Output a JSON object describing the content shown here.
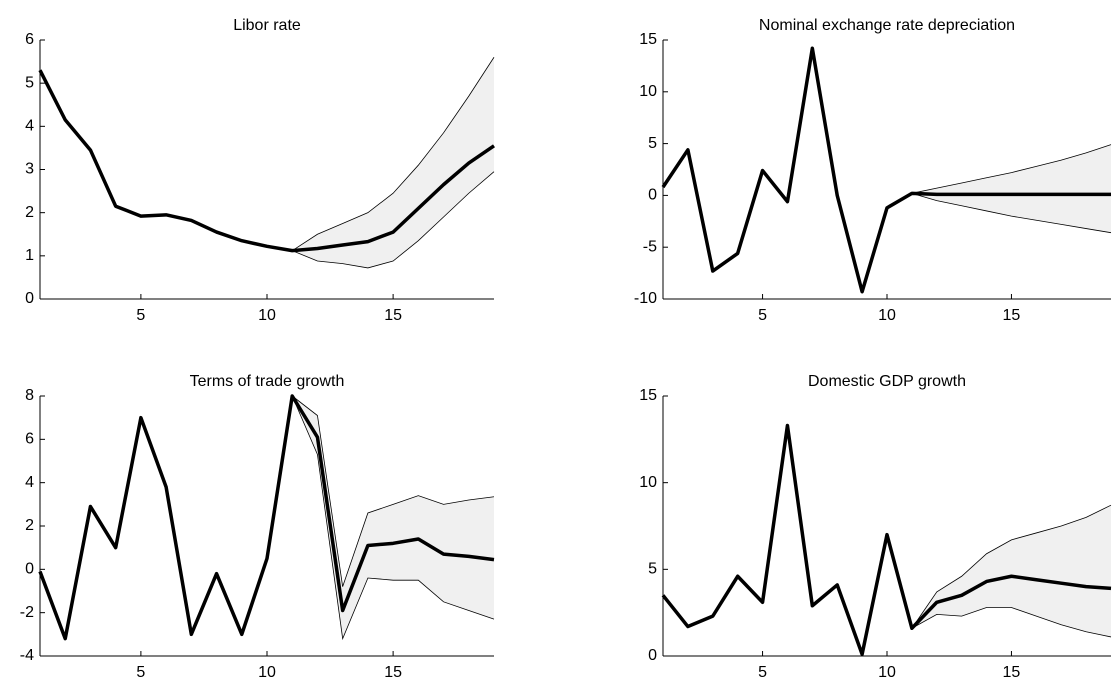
{
  "chart_data": [
    {
      "type": "line",
      "title": "Libor rate",
      "x": [
        1,
        2,
        3,
        4,
        5,
        6,
        7,
        8,
        9,
        10,
        11,
        12,
        13,
        14,
        15,
        16,
        17,
        18,
        19
      ],
      "values": [
        5.3,
        4.15,
        3.45,
        2.15,
        1.92,
        1.95,
        1.82,
        1.55,
        1.35,
        1.22,
        1.12,
        1.17,
        1.25,
        1.33,
        1.55,
        2.1,
        2.65,
        3.15,
        3.55
      ],
      "upper": [
        null,
        null,
        null,
        null,
        null,
        null,
        null,
        null,
        null,
        null,
        1.12,
        1.5,
        1.75,
        2.0,
        2.45,
        3.1,
        3.85,
        4.7,
        5.6
      ],
      "lower": [
        null,
        null,
        null,
        null,
        null,
        null,
        null,
        null,
        null,
        null,
        1.12,
        0.88,
        0.82,
        0.72,
        0.88,
        1.35,
        1.9,
        2.45,
        2.95
      ],
      "xlim": [
        1,
        19
      ],
      "ylim": [
        0,
        6
      ],
      "xticks": [
        5,
        10,
        15
      ],
      "yticks": [
        0,
        1,
        2,
        3,
        4,
        5,
        6
      ],
      "color": "#000000",
      "band_color": "#f0f0f0"
    },
    {
      "type": "line",
      "title": "Nominal exchange rate depreciation",
      "x": [
        1,
        2,
        3,
        4,
        5,
        6,
        7,
        8,
        9,
        10,
        11,
        12,
        13,
        14,
        15,
        16,
        17,
        18,
        19
      ],
      "values": [
        0.8,
        4.4,
        -7.3,
        -5.6,
        2.4,
        -0.6,
        14.2,
        0,
        -9.3,
        -1.2,
        0.2,
        0.1,
        0.1,
        0.1,
        0.1,
        0.1,
        0.1,
        0.1,
        0.1
      ],
      "upper": [
        null,
        null,
        null,
        null,
        null,
        null,
        null,
        null,
        null,
        null,
        0.2,
        0.7,
        1.2,
        1.7,
        2.2,
        2.8,
        3.4,
        4.1,
        4.9
      ],
      "lower": [
        null,
        null,
        null,
        null,
        null,
        null,
        null,
        null,
        null,
        null,
        0.2,
        -0.5,
        -1.0,
        -1.5,
        -2.0,
        -2.4,
        -2.8,
        -3.2,
        -3.6
      ],
      "xlim": [
        1,
        19
      ],
      "ylim": [
        -10,
        15
      ],
      "xticks": [
        5,
        10,
        15
      ],
      "yticks": [
        -10,
        -5,
        0,
        5,
        10,
        15
      ],
      "color": "#000000",
      "band_color": "#f0f0f0"
    },
    {
      "type": "line",
      "title": "Terms of trade growth",
      "x": [
        1,
        2,
        3,
        4,
        5,
        6,
        7,
        8,
        9,
        10,
        11,
        12,
        13,
        14,
        15,
        16,
        17,
        18,
        19
      ],
      "values": [
        -0.1,
        -3.2,
        2.9,
        1.0,
        7.0,
        3.8,
        -3.0,
        -0.2,
        -3.0,
        0.5,
        8.0,
        6.1,
        -1.9,
        1.1,
        1.2,
        1.4,
        0.7,
        0.6,
        0.45
      ],
      "upper": [
        null,
        null,
        null,
        null,
        null,
        null,
        null,
        null,
        null,
        null,
        8.0,
        7.1,
        -0.8,
        2.6,
        3.0,
        3.4,
        3.0,
        3.2,
        3.35
      ],
      "lower": [
        null,
        null,
        null,
        null,
        null,
        null,
        null,
        null,
        null,
        null,
        8.0,
        5.3,
        -3.2,
        -0.4,
        -0.5,
        -0.5,
        -1.5,
        -1.9,
        -2.3
      ],
      "xlim": [
        1,
        19
      ],
      "ylim": [
        -4,
        8
      ],
      "xticks": [
        5,
        10,
        15
      ],
      "yticks": [
        -4,
        -2,
        0,
        2,
        4,
        6,
        8
      ],
      "color": "#000000",
      "band_color": "#f0f0f0"
    },
    {
      "type": "line",
      "title": "Domestic GDP growth",
      "x": [
        1,
        2,
        3,
        4,
        5,
        6,
        7,
        8,
        9,
        10,
        11,
        12,
        13,
        14,
        15,
        16,
        17,
        18,
        19
      ],
      "values": [
        3.5,
        1.7,
        2.3,
        4.6,
        3.1,
        13.3,
        2.9,
        4.1,
        0.1,
        7.0,
        1.6,
        3.1,
        3.5,
        4.3,
        4.6,
        4.4,
        4.2,
        4.0,
        3.9
      ],
      "upper": [
        null,
        null,
        null,
        null,
        null,
        null,
        null,
        null,
        null,
        null,
        1.6,
        3.7,
        4.6,
        5.9,
        6.7,
        7.1,
        7.5,
        8.0,
        8.7
      ],
      "lower": [
        null,
        null,
        null,
        null,
        null,
        null,
        null,
        null,
        null,
        null,
        1.6,
        2.4,
        2.3,
        2.8,
        2.8,
        2.3,
        1.8,
        1.4,
        1.1
      ],
      "xlim": [
        1,
        19
      ],
      "ylim": [
        0,
        15
      ],
      "xticks": [
        5,
        10,
        15
      ],
      "yticks": [
        0,
        5,
        10,
        15
      ],
      "color": "#000000",
      "band_color": "#f0f0f0"
    }
  ]
}
